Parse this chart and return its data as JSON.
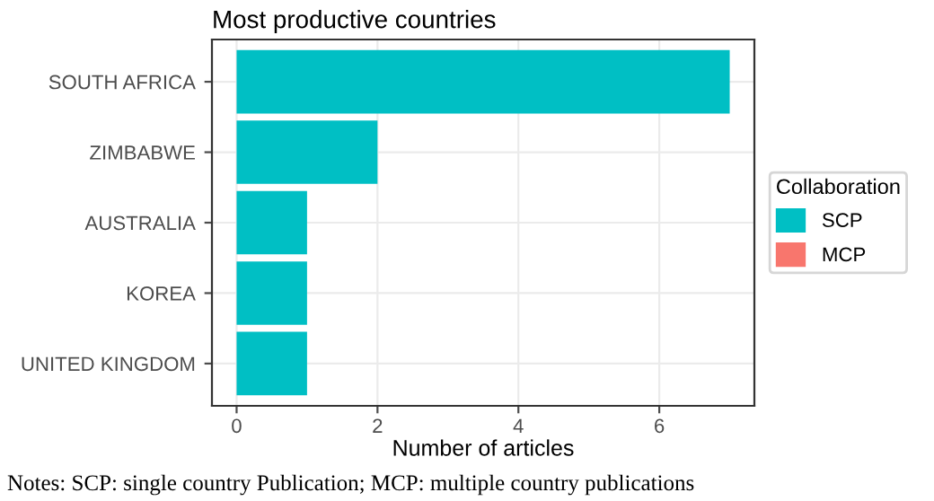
{
  "chart_data": {
    "type": "bar",
    "orientation": "horizontal",
    "title": "Most productive countries",
    "xlabel": "Number of articles",
    "legend_title": "Collaboration",
    "legend": "right",
    "grid": true,
    "categories": [
      "SOUTH AFRICA",
      "ZIMBABWE",
      "AUSTRALIA",
      "KOREA",
      "UNITED KINGDOM"
    ],
    "series": [
      {
        "name": "SCP",
        "color": "#00bfc4",
        "values": [
          7,
          2,
          1,
          1,
          1
        ]
      },
      {
        "name": "MCP",
        "color": "#f8766d",
        "values": [
          0,
          0,
          0,
          0,
          0
        ]
      }
    ],
    "xlim": [
      -0.35,
      7.35
    ],
    "xticks": [
      0,
      2,
      4,
      6
    ],
    "annotations": [
      "Notes: SCP: single country Publication; MCP: multiple country publications"
    ]
  }
}
